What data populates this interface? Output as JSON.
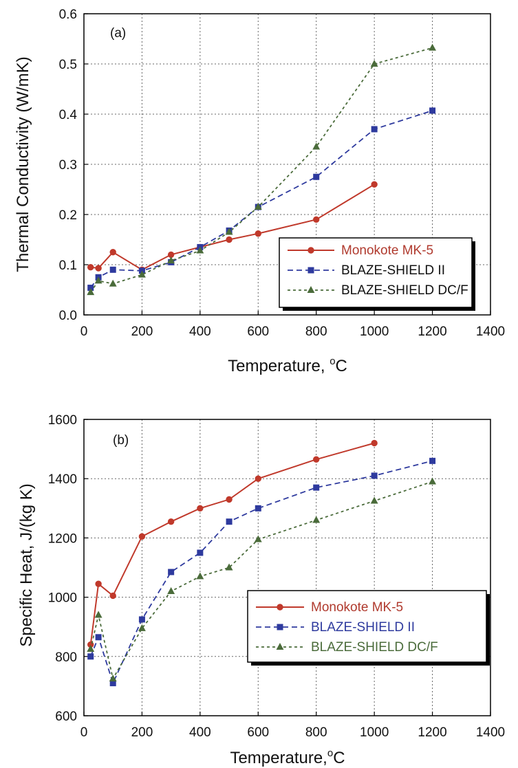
{
  "chart_data": [
    {
      "type": "line",
      "panel_label": "(a)",
      "xlabel": "Temperature, ",
      "xlabel_unit": "C",
      "xlabel_degree": "o",
      "ylabel": "Thermal Conductivity (W/mK)",
      "xlim": [
        0,
        1400
      ],
      "ylim": [
        0,
        0.6
      ],
      "xticks": [
        "0",
        "200",
        "400",
        "600",
        "800",
        "1000",
        "1200",
        "1400"
      ],
      "yticks": [
        "0.0",
        "0.1",
        "0.2",
        "0.3",
        "0.4",
        "0.5",
        "0.6"
      ],
      "grid": true,
      "legend_position": "middle-right",
      "series": [
        {
          "name": "Monokote MK-5",
          "color": "#c0392b",
          "marker": "circle",
          "dash": "solid",
          "x": [
            23,
            50,
            100,
            200,
            300,
            400,
            500,
            600,
            800,
            1000
          ],
          "y": [
            0.095,
            0.093,
            0.125,
            0.09,
            0.12,
            0.135,
            0.15,
            0.162,
            0.19,
            0.26
          ]
        },
        {
          "name": "BLAZE-SHIELD II",
          "color": "#2e3a9e",
          "marker": "square",
          "dash": "dashed",
          "x": [
            23,
            50,
            100,
            200,
            300,
            400,
            500,
            600,
            800,
            1000,
            1200
          ],
          "y": [
            0.054,
            0.075,
            0.09,
            0.088,
            0.105,
            0.135,
            0.168,
            0.215,
            0.275,
            0.37,
            0.407
          ]
        },
        {
          "name": "BLAZE-SHIELD DC/F",
          "color": "#4a6b3a",
          "marker": "triangle",
          "dash": "dotted",
          "x": [
            23,
            50,
            100,
            200,
            300,
            400,
            500,
            600,
            800,
            1000,
            1200
          ],
          "y": [
            0.045,
            0.068,
            0.062,
            0.08,
            0.108,
            0.128,
            0.165,
            0.215,
            0.335,
            0.5,
            0.532
          ]
        }
      ]
    },
    {
      "type": "line",
      "panel_label": "(b)",
      "xlabel": "Temperature,",
      "xlabel_unit": "C",
      "xlabel_degree": "o",
      "ylabel": "Specific Heat, J/(kg K)",
      "xlim": [
        0,
        1400
      ],
      "ylim": [
        600,
        1600
      ],
      "xticks": [
        "0",
        "200",
        "400",
        "600",
        "800",
        "1000",
        "1200",
        "1400"
      ],
      "yticks": [
        "600",
        "800",
        "1000",
        "1200",
        "1400",
        "1600"
      ],
      "grid": true,
      "legend_position": "lower-right",
      "series": [
        {
          "name": "Monokote MK-5",
          "color": "#c0392b",
          "marker": "circle",
          "dash": "solid",
          "x": [
            23,
            50,
            100,
            200,
            300,
            400,
            500,
            600,
            800,
            1000
          ],
          "y": [
            840,
            1045,
            1005,
            1205,
            1255,
            1300,
            1330,
            1400,
            1465,
            1520
          ]
        },
        {
          "name": "BLAZE-SHIELD II",
          "color": "#2e3a9e",
          "marker": "square",
          "dash": "dashed",
          "x": [
            23,
            50,
            100,
            200,
            300,
            400,
            500,
            600,
            800,
            1000,
            1200
          ],
          "y": [
            800,
            865,
            710,
            925,
            1085,
            1150,
            1255,
            1300,
            1370,
            1410,
            1460
          ]
        },
        {
          "name": "BLAZE-SHIELD DC/F",
          "color": "#4a6b3a",
          "marker": "triangle",
          "dash": "dotted",
          "x": [
            23,
            50,
            100,
            200,
            300,
            400,
            500,
            600,
            800,
            1000,
            1200
          ],
          "y": [
            825,
            940,
            725,
            895,
            1020,
            1070,
            1100,
            1195,
            1260,
            1325,
            1390
          ]
        }
      ]
    }
  ]
}
